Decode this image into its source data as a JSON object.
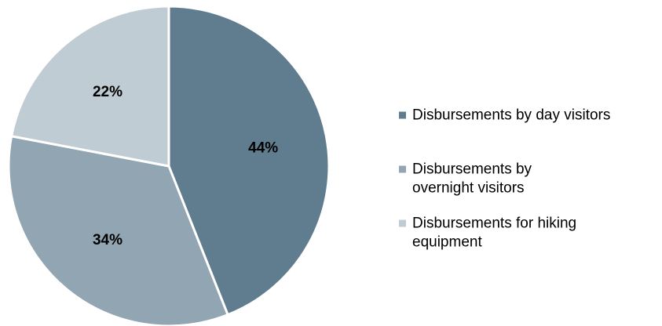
{
  "chart_data": {
    "type": "pie",
    "start_angle_deg": 0,
    "direction": "clockwise",
    "legend_position": "right",
    "slices": [
      {
        "name": "Disbursements by day visitors",
        "label_lines": [
          "Disbursements by day visitors"
        ],
        "value": 44,
        "value_label": "44%",
        "color": "#607d8f"
      },
      {
        "name": "Disbursements by overnight visitors",
        "label_lines": [
          "Disbursements by",
          "overnight visitors"
        ],
        "value": 34,
        "value_label": "34%",
        "color": "#91a5b2"
      },
      {
        "name": "Disbursements for hiking equipment",
        "label_lines": [
          "Disbursements for hiking",
          "equipment"
        ],
        "value": 22,
        "value_label": "22%",
        "color": "#c0ccd4"
      }
    ]
  }
}
